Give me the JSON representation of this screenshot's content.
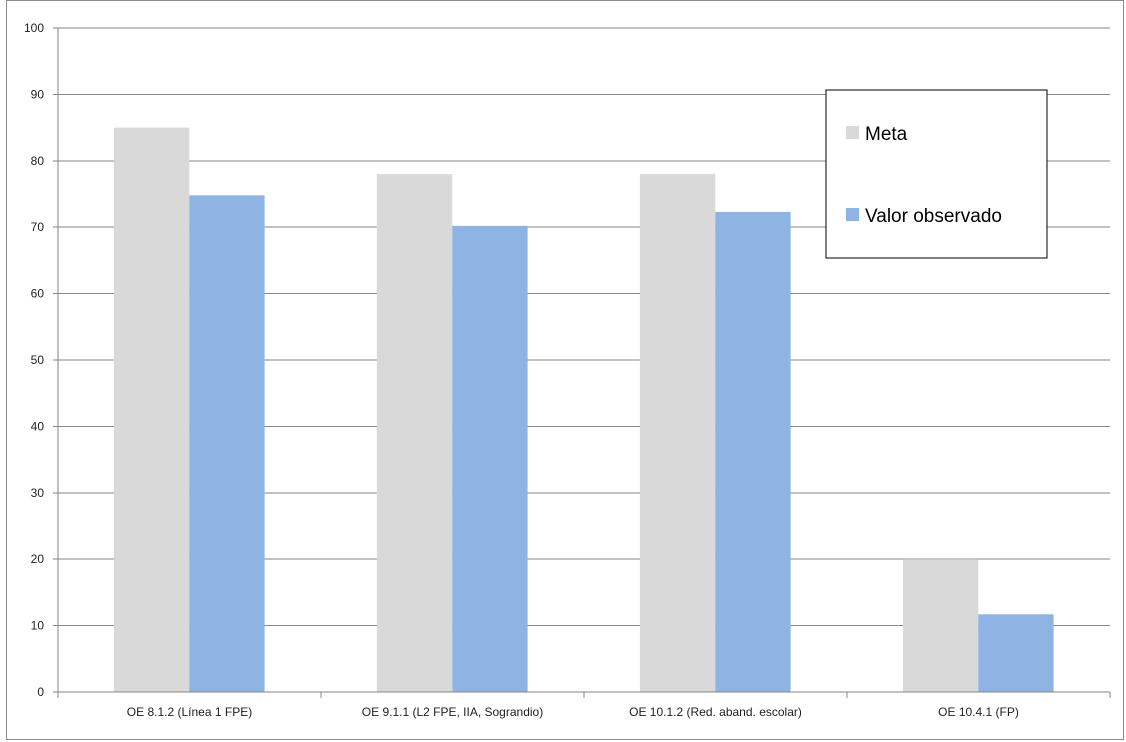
{
  "chart_data": {
    "type": "bar",
    "categories": [
      "OE 8.1.2 (Línea 1 FPE)",
      "OE 9.1.1 (L2 FPE, IIA, Sograndio)",
      "OE 10.1.2 (Red. aband. escolar)",
      "OE 10.4.1 (FP)"
    ],
    "series": [
      {
        "name": "Meta",
        "values": [
          85,
          78,
          78,
          20
        ],
        "color": "#d9d9d9"
      },
      {
        "name": "Valor observado",
        "values": [
          74.8,
          70.2,
          72.3,
          11.7
        ],
        "color": "#8eb4e3"
      }
    ],
    "ylim": [
      0,
      100
    ],
    "yticks": [
      "0",
      "10",
      "20",
      "30",
      "40",
      "50",
      "60",
      "70",
      "80",
      "90",
      "100"
    ],
    "grid": true,
    "gridColor": "#868686",
    "legend": {
      "placement": "top-right"
    }
  }
}
